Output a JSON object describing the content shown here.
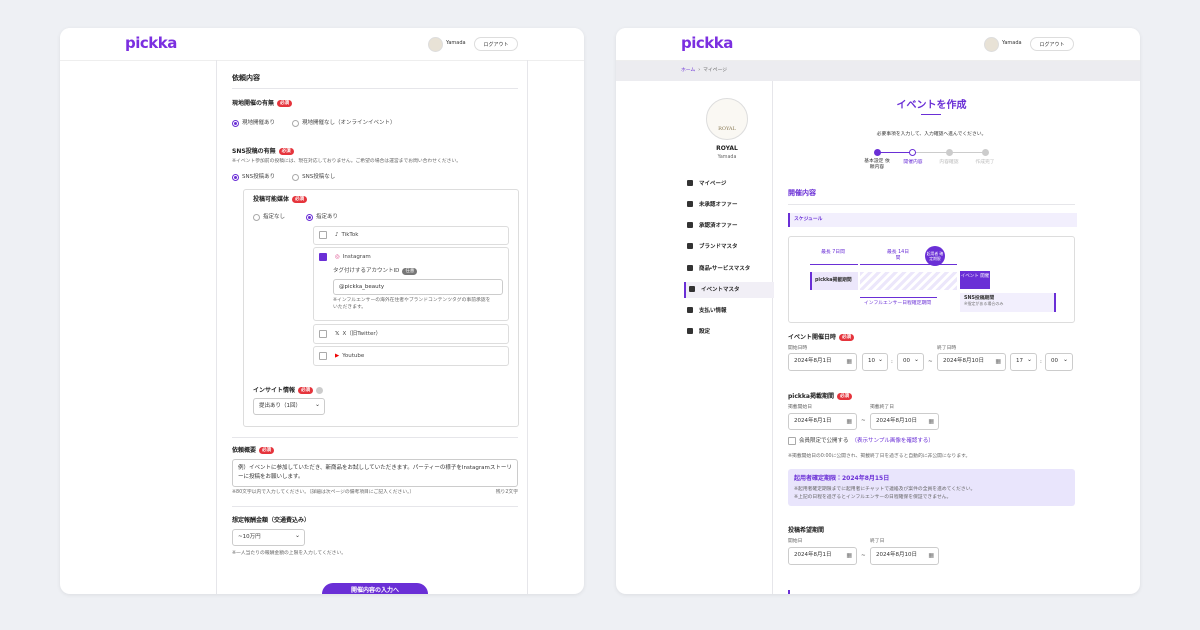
{
  "header": {
    "logo": "pickka",
    "user": "Yamada",
    "logout": "ログアウト"
  },
  "badge_required": "必須",
  "badge_optional": "任意",
  "tilde": "~",
  "left": {
    "section": "依頼内容",
    "onsite": {
      "label": "現地開催の有無",
      "options": [
        "現地開催あり",
        "現地開催なし（オンラインイベント）"
      ]
    },
    "sns": {
      "label": "SNS投稿の有無",
      "note": "※イベント参加前の投稿には、現在対応しておりません。ご希望の場合は運営までお問い合わせください。",
      "options": [
        "SNS投稿あり",
        "SNS投稿なし"
      ]
    },
    "media": {
      "label": "投稿可能媒体",
      "options": [
        "指定なし",
        "指定あり"
      ],
      "platforms": [
        "TikTok",
        "Instagram",
        "X（旧Twitter）",
        "Youtube"
      ],
      "tag_label": "タグ付けするアカウントID",
      "tag_value": "@pickka_beauty",
      "tag_note": [
        "※インフルエンサーの海外在住者やブランドコンテンツタグの事前承認を",
        "いただきます。"
      ]
    },
    "insight": {
      "label": "インサイト情報",
      "value": "提出あり（1回）"
    },
    "summary": {
      "label": "依頼概要",
      "value": "例）イベントに参加していただき、新商品をお試ししていただきます。パーティーの様子をInstagramストーリーに投稿をお願いします。",
      "note": "※80文字以内で入力してください。（詳細は次ページの備考項目にご記入ください。）",
      "counter": "残り2文字"
    },
    "reward": {
      "label": "想定報酬金額（交通費込み）",
      "value": "~10万円",
      "note": "※一人当たりの報酬金額の上限を入力してください。"
    },
    "button": "開催内容の入力へ"
  },
  "right": {
    "breadcrumb": [
      "ホーム",
      "マイページ"
    ],
    "brand": {
      "logo": "ROYAL",
      "name": "ROYAL",
      "user": "Yamada"
    },
    "menu": [
      "マイページ",
      "未承認オファー",
      "承認済オファー",
      "ブランドマスタ",
      "商品・サービスマスタ",
      "イベントマスタ",
      "支払い情報",
      "設定"
    ],
    "title": "イベントを作成",
    "subtitle": "必要事項を入力して、入力確認へ進んでください。",
    "steps": [
      "基本設定 依頼内容",
      "開催内容",
      "内容確認",
      "作成完了"
    ],
    "section": "開催内容",
    "schedule": {
      "label": "スケジュール",
      "max7": "最長 7日間",
      "max14": "最長 14日間",
      "deadline": "起用者 確定期限",
      "listing": "pickka掲載期間",
      "event": "イベント 開催",
      "influencer": "インフルエンサー日程確定期間",
      "sns": "SNS投稿期間",
      "sns_note": "※指定がある場合のみ"
    },
    "event_datetime": {
      "label": "イベント開催日時",
      "start_label": "開始日時",
      "end_label": "終了日時",
      "start_date": "2024年8月1日",
      "start_hour": "10",
      "start_min": "00",
      "end_date": "2024年8月10日",
      "end_hour": "17",
      "end_min": "00"
    },
    "listing": {
      "label": "pickka掲載期間",
      "start_label": "掲載開始日",
      "end_label": "掲載終了日",
      "start": "2024年8月1日",
      "end": "2024年8月10日",
      "members_only": "会員限定で公開する",
      "sample_link": "（表示サンプル画像を確認する）",
      "note": "※掲載開始日の0:00に公開され、掲載終了日を過ぎると自動的に非公開になります。"
    },
    "deadline_box": {
      "title": "起用者確定期限：2024年8月15日",
      "notes": [
        "※起用者確定期限までに起用者にチャットで連絡及び案件の全員を進めてください。",
        "※上記の日程を過ぎるとインフルエンサーの日程確保を保証できません。"
      ]
    },
    "posting": {
      "label": "投稿希望期間",
      "start_label": "開始日",
      "end_label": "終了日",
      "start": "2024年8月1日",
      "end": "2024年8月10日"
    }
  }
}
